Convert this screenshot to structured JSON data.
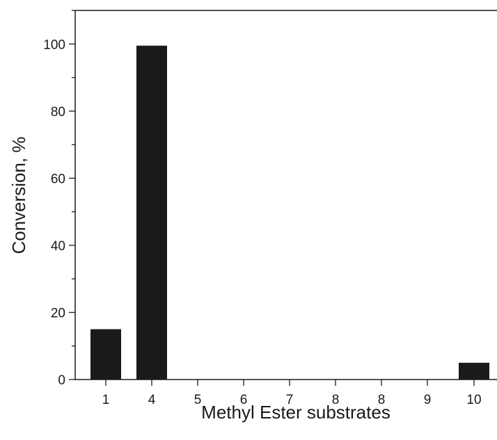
{
  "chart_data": {
    "type": "bar",
    "categories": [
      "1",
      "4",
      "5",
      "6",
      "7",
      "8",
      "8",
      "9",
      "10"
    ],
    "values": [
      15,
      99.5,
      0,
      0,
      0,
      0,
      0,
      0,
      5
    ],
    "xlabel": "Methyl Ester substrates",
    "ylabel": "Conversion, %",
    "ylim": [
      0,
      110
    ],
    "yticks": [
      0,
      20,
      40,
      60,
      80,
      100
    ],
    "grid": false,
    "bar_color": "#1a1a1a"
  }
}
